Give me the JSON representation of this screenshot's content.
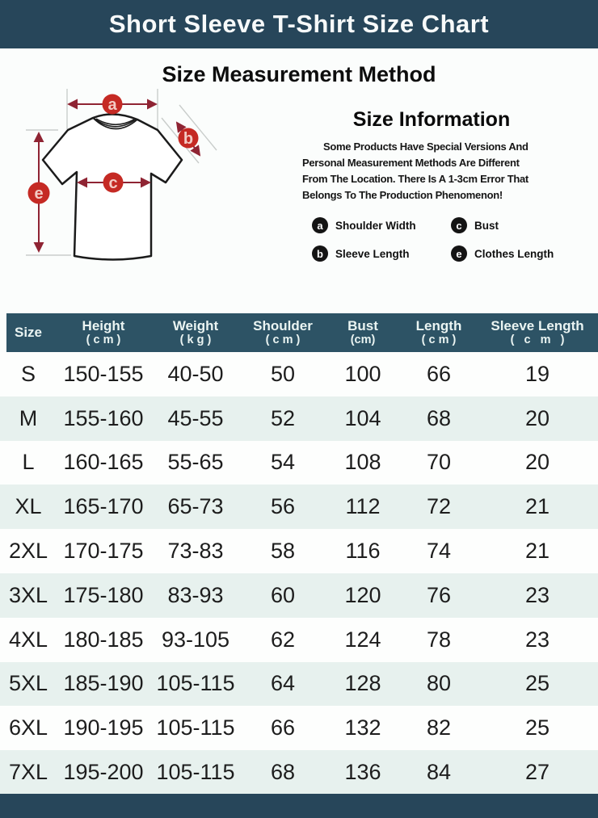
{
  "page": {
    "title": "Short Sleeve T-Shirt Size Chart",
    "section_heading": "Size Measurement Method"
  },
  "info": {
    "title": "Size Information",
    "body_lines": [
      "Some Products Have Special Versions And",
      "Personal Measurement Methods Are Different",
      "From The Location. There Is A 1-3cm Error That",
      "Belongs To The Production Phenomenon!"
    ],
    "legend": [
      {
        "key": "a",
        "label": "Shoulder Width"
      },
      {
        "key": "c",
        "label": "Bust"
      },
      {
        "key": "b",
        "label": "Sleeve Length"
      },
      {
        "key": "e",
        "label": "Clothes Length"
      }
    ]
  },
  "diagram": {
    "labels": {
      "a": "a",
      "b": "b",
      "c": "c",
      "e": "e"
    }
  },
  "table": {
    "headers": [
      {
        "line1": "Size"
      },
      {
        "line1": "Height",
        "line2": "( c m )"
      },
      {
        "line1": "Weight",
        "line2": "( k g )"
      },
      {
        "line1": "Shoulder",
        "line2": "( c m )"
      },
      {
        "line1": "Bust",
        "line2": "(cm)"
      },
      {
        "line1": "Length",
        "line2": "( c m )"
      },
      {
        "line1": "Sleeve Length",
        "line2": "(   c   m   )"
      }
    ]
  },
  "chart_data": {
    "type": "table",
    "title": "Short Sleeve T-Shirt Size Chart",
    "columns": [
      "Size",
      "Height (cm)",
      "Weight (kg)",
      "Shoulder (cm)",
      "Bust (cm)",
      "Length (cm)",
      "Sleeve Length (cm)"
    ],
    "rows": [
      [
        "S",
        "150-155",
        "40-50",
        "50",
        "100",
        "66",
        "19"
      ],
      [
        "M",
        "155-160",
        "45-55",
        "52",
        "104",
        "68",
        "20"
      ],
      [
        "L",
        "160-165",
        "55-65",
        "54",
        "108",
        "70",
        "20"
      ],
      [
        "XL",
        "165-170",
        "65-73",
        "56",
        "112",
        "72",
        "21"
      ],
      [
        "2XL",
        "170-175",
        "73-83",
        "58",
        "116",
        "74",
        "21"
      ],
      [
        "3XL",
        "175-180",
        "83-93",
        "60",
        "120",
        "76",
        "23"
      ],
      [
        "4XL",
        "180-185",
        "93-105",
        "62",
        "124",
        "78",
        "23"
      ],
      [
        "5XL",
        "185-190",
        "105-115",
        "64",
        "128",
        "80",
        "25"
      ],
      [
        "6XL",
        "190-195",
        "105-115",
        "66",
        "132",
        "82",
        "25"
      ],
      [
        "7XL",
        "195-200",
        "105-115",
        "68",
        "136",
        "84",
        "27"
      ]
    ]
  },
  "colors": {
    "bar_dark": "#27465a",
    "table_header_bg": "#2d5365",
    "row_tint": "#e7f1ee",
    "marker_red": "#c52a24",
    "arrow_red": "#8f2433"
  }
}
